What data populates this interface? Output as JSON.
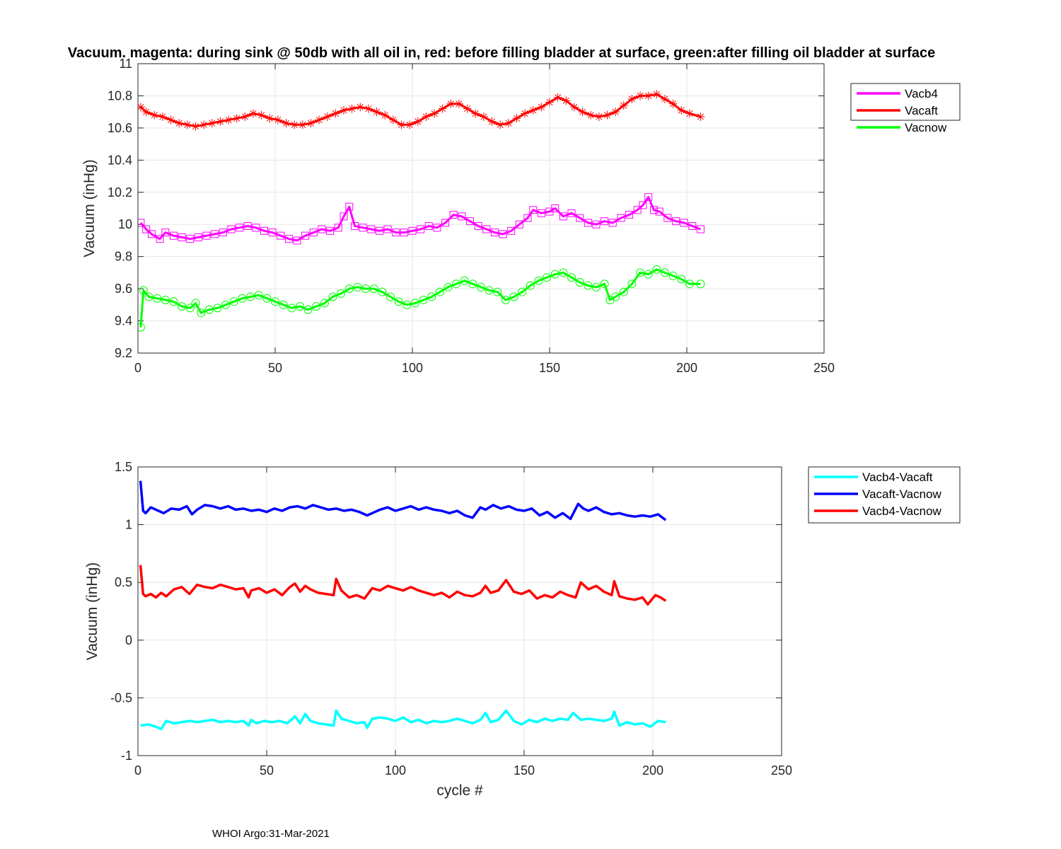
{
  "title": "Vacuum. magenta: during sink @ 50db with all oil in, red: before filling bladder at surface, green:after filling oil bladder at surface",
  "footer": "WHOI Argo:31-Mar-2021",
  "colors": {
    "magenta": "#ff00ff",
    "red": "#ff0000",
    "green": "#00ff00",
    "cyan": "#00ffff",
    "blue": "#0000ff",
    "grid": "#e6e6e6",
    "axis": "#262626"
  },
  "chart_data": [
    {
      "type": "line",
      "title": "Vacuum. magenta: during sink @ 50db with all oil in, red: before filling bladder at surface, green:after filling oil bladder at surface",
      "xlabel": "",
      "ylabel": "Vacuum (inHg)",
      "xlim": [
        0,
        250
      ],
      "ylim": [
        9.2,
        11
      ],
      "xticks": [
        "0",
        "50",
        "100",
        "150",
        "200",
        "250"
      ],
      "yticks": [
        "9.2",
        "9.4",
        "9.6",
        "9.8",
        "10",
        "10.2",
        "10.4",
        "10.6",
        "10.8",
        "11"
      ],
      "grid": true,
      "legend": "outside-top-right",
      "series": [
        {
          "name": "Vacb4",
          "color": "#ff00ff",
          "marker": "square",
          "x": [
            1,
            3,
            5,
            8,
            10,
            13,
            16,
            19,
            22,
            25,
            28,
            31,
            34,
            37,
            40,
            43,
            46,
            49,
            52,
            55,
            58,
            61,
            64,
            67,
            70,
            73,
            75,
            77,
            79,
            82,
            85,
            88,
            91,
            94,
            97,
            100,
            103,
            106,
            109,
            112,
            115,
            118,
            121,
            124,
            127,
            130,
            133,
            136,
            139,
            142,
            144,
            147,
            150,
            152,
            155,
            158,
            161,
            164,
            167,
            170,
            173,
            176,
            179,
            182,
            184,
            186,
            188,
            190,
            193,
            196,
            199,
            202,
            205
          ],
          "y": [
            10.01,
            9.97,
            9.94,
            9.91,
            9.95,
            9.93,
            9.92,
            9.91,
            9.92,
            9.93,
            9.94,
            9.95,
            9.97,
            9.98,
            9.99,
            9.98,
            9.96,
            9.95,
            9.93,
            9.91,
            9.9,
            9.93,
            9.95,
            9.97,
            9.96,
            9.98,
            10.05,
            10.11,
            9.99,
            9.98,
            9.97,
            9.96,
            9.97,
            9.95,
            9.95,
            9.96,
            9.97,
            9.99,
            9.98,
            10.01,
            10.06,
            10.05,
            10.02,
            9.99,
            9.97,
            9.95,
            9.94,
            9.96,
            10.0,
            10.04,
            10.09,
            10.07,
            10.08,
            10.1,
            10.05,
            10.07,
            10.04,
            10.01,
            10.0,
            10.02,
            10.01,
            10.04,
            10.06,
            10.09,
            10.12,
            10.17,
            10.09,
            10.08,
            10.04,
            10.02,
            10.01,
            9.99,
            9.97
          ]
        },
        {
          "name": "Vacaft",
          "color": "#ff0000",
          "marker": "asterisk",
          "x": [
            1,
            3,
            6,
            9,
            12,
            15,
            18,
            21,
            24,
            27,
            30,
            33,
            36,
            39,
            42,
            45,
            48,
            51,
            54,
            57,
            60,
            63,
            66,
            69,
            72,
            75,
            78,
            81,
            84,
            87,
            90,
            93,
            96,
            99,
            102,
            105,
            108,
            111,
            114,
            117,
            120,
            123,
            126,
            129,
            132,
            135,
            138,
            141,
            144,
            147,
            150,
            153,
            156,
            159,
            162,
            165,
            168,
            171,
            174,
            177,
            180,
            183,
            186,
            189,
            192,
            195,
            198,
            201,
            205
          ],
          "y": [
            10.73,
            10.7,
            10.68,
            10.67,
            10.65,
            10.63,
            10.62,
            10.61,
            10.62,
            10.63,
            10.64,
            10.65,
            10.66,
            10.67,
            10.69,
            10.68,
            10.66,
            10.65,
            10.63,
            10.62,
            10.62,
            10.63,
            10.65,
            10.67,
            10.69,
            10.71,
            10.72,
            10.73,
            10.72,
            10.7,
            10.68,
            10.65,
            10.62,
            10.62,
            10.64,
            10.67,
            10.69,
            10.72,
            10.75,
            10.75,
            10.72,
            10.69,
            10.67,
            10.64,
            10.62,
            10.63,
            10.66,
            10.69,
            10.71,
            10.73,
            10.76,
            10.79,
            10.77,
            10.73,
            10.7,
            10.68,
            10.67,
            10.68,
            10.7,
            10.74,
            10.78,
            10.8,
            10.8,
            10.81,
            10.78,
            10.75,
            10.71,
            10.69,
            10.67
          ]
        },
        {
          "name": "Vacnow",
          "color": "#00ff00",
          "marker": "circle",
          "x": [
            1,
            2,
            4,
            7,
            10,
            13,
            16,
            19,
            21,
            23,
            26,
            29,
            32,
            35,
            38,
            41,
            44,
            47,
            50,
            53,
            56,
            59,
            62,
            65,
            68,
            71,
            74,
            77,
            80,
            83,
            86,
            89,
            92,
            95,
            98,
            101,
            104,
            107,
            110,
            113,
            116,
            119,
            122,
            125,
            128,
            131,
            134,
            137,
            140,
            143,
            146,
            149,
            152,
            155,
            158,
            161,
            164,
            167,
            170,
            172,
            174,
            177,
            180,
            183,
            186,
            189,
            192,
            195,
            198,
            201,
            205
          ],
          "y": [
            9.36,
            9.59,
            9.55,
            9.54,
            9.53,
            9.52,
            9.49,
            9.48,
            9.51,
            9.45,
            9.47,
            9.48,
            9.5,
            9.52,
            9.54,
            9.55,
            9.56,
            9.54,
            9.52,
            9.5,
            9.48,
            9.49,
            9.47,
            9.49,
            9.51,
            9.55,
            9.57,
            9.6,
            9.61,
            9.6,
            9.6,
            9.58,
            9.55,
            9.52,
            9.5,
            9.51,
            9.53,
            9.55,
            9.58,
            9.61,
            9.63,
            9.65,
            9.63,
            9.61,
            9.59,
            9.58,
            9.53,
            9.55,
            9.58,
            9.62,
            9.65,
            9.67,
            9.69,
            9.7,
            9.67,
            9.64,
            9.62,
            9.61,
            9.63,
            9.53,
            9.55,
            9.58,
            9.63,
            9.7,
            9.69,
            9.72,
            9.7,
            9.68,
            9.66,
            9.63,
            9.63
          ]
        }
      ]
    },
    {
      "type": "line",
      "title": "",
      "xlabel": "cycle #",
      "ylabel": "Vacuum (inHg)",
      "xlim": [
        0,
        250
      ],
      "ylim": [
        -1,
        1.5
      ],
      "xticks": [
        "0",
        "50",
        "100",
        "150",
        "200",
        "250"
      ],
      "yticks": [
        "-1",
        "-0.5",
        "0",
        "0.5",
        "1",
        "1.5"
      ],
      "grid": true,
      "legend": "outside-top-right",
      "series": [
        {
          "name": "Vacb4-Vacaft",
          "color": "#00ffff",
          "x": [
            1,
            4,
            7,
            9,
            11,
            14,
            17,
            20,
            23,
            26,
            29,
            32,
            35,
            38,
            41,
            43,
            44,
            46,
            49,
            52,
            55,
            58,
            60,
            61,
            63,
            65,
            67,
            70,
            73,
            76,
            77,
            79,
            82,
            85,
            88,
            89,
            91,
            94,
            97,
            100,
            103,
            106,
            109,
            112,
            115,
            118,
            121,
            124,
            127,
            130,
            133,
            135,
            137,
            140,
            143,
            146,
            149,
            152,
            155,
            158,
            161,
            164,
            167,
            169,
            172,
            175,
            178,
            181,
            184,
            185,
            187,
            190,
            193,
            196,
            199,
            202,
            205
          ],
          "y": [
            -0.74,
            -0.73,
            -0.75,
            -0.77,
            -0.7,
            -0.72,
            -0.71,
            -0.7,
            -0.71,
            -0.7,
            -0.69,
            -0.71,
            -0.7,
            -0.71,
            -0.7,
            -0.74,
            -0.69,
            -0.72,
            -0.7,
            -0.71,
            -0.7,
            -0.72,
            -0.68,
            -0.66,
            -0.72,
            -0.64,
            -0.7,
            -0.72,
            -0.73,
            -0.74,
            -0.61,
            -0.68,
            -0.7,
            -0.72,
            -0.71,
            -0.76,
            -0.68,
            -0.67,
            -0.68,
            -0.7,
            -0.67,
            -0.71,
            -0.69,
            -0.72,
            -0.7,
            -0.71,
            -0.7,
            -0.68,
            -0.7,
            -0.72,
            -0.69,
            -0.63,
            -0.71,
            -0.69,
            -0.61,
            -0.7,
            -0.73,
            -0.69,
            -0.71,
            -0.68,
            -0.7,
            -0.68,
            -0.69,
            -0.63,
            -0.69,
            -0.68,
            -0.69,
            -0.7,
            -0.68,
            -0.62,
            -0.74,
            -0.71,
            -0.73,
            -0.72,
            -0.75,
            -0.7,
            -0.71
          ]
        },
        {
          "name": "Vacaft-Vacnow",
          "color": "#0000ff",
          "x": [
            1,
            2,
            3,
            5,
            8,
            10,
            13,
            16,
            19,
            21,
            23,
            26,
            29,
            32,
            35,
            38,
            41,
            44,
            47,
            50,
            53,
            56,
            59,
            62,
            65,
            68,
            71,
            74,
            77,
            80,
            83,
            86,
            89,
            91,
            94,
            97,
            100,
            103,
            106,
            109,
            112,
            115,
            118,
            121,
            124,
            127,
            130,
            133,
            135,
            138,
            141,
            144,
            147,
            150,
            153,
            156,
            159,
            162,
            165,
            168,
            171,
            173,
            175,
            178,
            181,
            184,
            187,
            190,
            193,
            196,
            199,
            202,
            205
          ],
          "y": [
            1.38,
            1.12,
            1.1,
            1.15,
            1.12,
            1.1,
            1.14,
            1.13,
            1.16,
            1.09,
            1.13,
            1.17,
            1.16,
            1.14,
            1.16,
            1.13,
            1.14,
            1.12,
            1.13,
            1.11,
            1.14,
            1.12,
            1.15,
            1.16,
            1.14,
            1.17,
            1.15,
            1.13,
            1.14,
            1.12,
            1.13,
            1.11,
            1.08,
            1.1,
            1.13,
            1.15,
            1.12,
            1.14,
            1.16,
            1.13,
            1.15,
            1.13,
            1.12,
            1.1,
            1.12,
            1.08,
            1.06,
            1.15,
            1.13,
            1.17,
            1.14,
            1.16,
            1.13,
            1.12,
            1.14,
            1.08,
            1.11,
            1.06,
            1.1,
            1.05,
            1.18,
            1.14,
            1.12,
            1.15,
            1.11,
            1.09,
            1.1,
            1.08,
            1.07,
            1.08,
            1.07,
            1.09,
            1.04
          ]
        },
        {
          "name": "Vacb4-Vacnow",
          "color": "#ff0000",
          "x": [
            1,
            2,
            3,
            5,
            7,
            9,
            11,
            14,
            17,
            20,
            23,
            26,
            29,
            32,
            35,
            38,
            41,
            43,
            44,
            47,
            50,
            53,
            56,
            59,
            61,
            63,
            65,
            67,
            70,
            73,
            76,
            77,
            79,
            82,
            85,
            88,
            91,
            94,
            97,
            100,
            103,
            106,
            109,
            112,
            115,
            118,
            121,
            124,
            127,
            130,
            133,
            135,
            137,
            140,
            143,
            146,
            149,
            152,
            155,
            158,
            161,
            164,
            167,
            170,
            172,
            175,
            178,
            181,
            184,
            185,
            187,
            190,
            193,
            196,
            198,
            201,
            203,
            205
          ],
          "y": [
            0.65,
            0.4,
            0.38,
            0.4,
            0.37,
            0.41,
            0.38,
            0.44,
            0.46,
            0.4,
            0.48,
            0.46,
            0.45,
            0.48,
            0.46,
            0.44,
            0.45,
            0.37,
            0.43,
            0.45,
            0.41,
            0.44,
            0.39,
            0.46,
            0.49,
            0.42,
            0.47,
            0.44,
            0.41,
            0.4,
            0.39,
            0.53,
            0.43,
            0.37,
            0.39,
            0.36,
            0.45,
            0.43,
            0.47,
            0.45,
            0.43,
            0.46,
            0.43,
            0.41,
            0.39,
            0.41,
            0.37,
            0.42,
            0.39,
            0.38,
            0.41,
            0.47,
            0.41,
            0.43,
            0.52,
            0.42,
            0.4,
            0.43,
            0.36,
            0.39,
            0.37,
            0.42,
            0.39,
            0.37,
            0.5,
            0.44,
            0.47,
            0.42,
            0.39,
            0.51,
            0.38,
            0.36,
            0.35,
            0.37,
            0.31,
            0.39,
            0.37,
            0.34
          ]
        }
      ]
    }
  ]
}
